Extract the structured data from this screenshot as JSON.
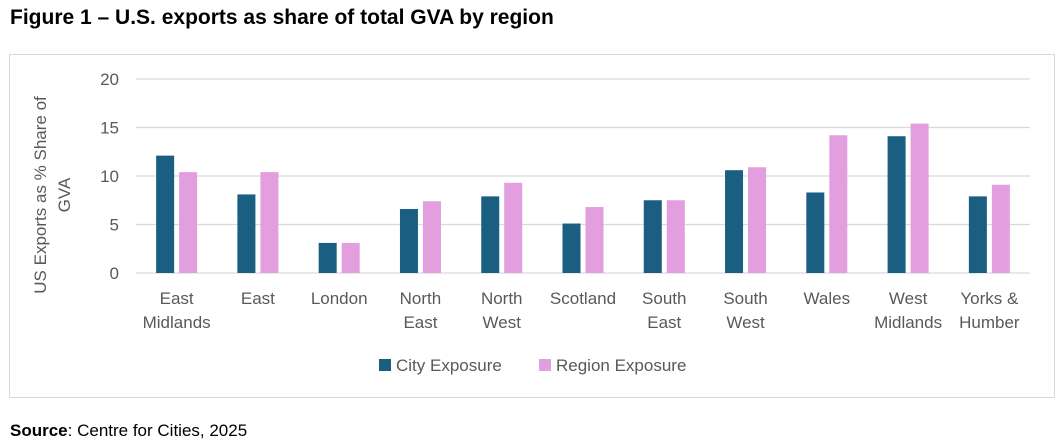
{
  "figure": {
    "title": "Figure 1 – U.S. exports as share of total GVA by region",
    "source_label": "Source",
    "source_text": ": Centre for Cities, 2025"
  },
  "chart_data": {
    "type": "bar",
    "title": "",
    "xlabel": "",
    "ylabel": "US Exports as % Share of GVA",
    "ylabel_lines": [
      "US Exports as % Share of",
      "GVA"
    ],
    "ylim": [
      0,
      20
    ],
    "yticks": [
      0,
      5,
      10,
      15,
      20
    ],
    "grid": true,
    "legend_position": "bottom",
    "categories": [
      [
        "East",
        "Midlands"
      ],
      [
        "East"
      ],
      [
        "London"
      ],
      [
        "North",
        "East"
      ],
      [
        "North",
        "West"
      ],
      [
        "Scotland"
      ],
      [
        "South",
        "East"
      ],
      [
        "South",
        "West"
      ],
      [
        "Wales"
      ],
      [
        "West",
        "Midlands"
      ],
      [
        "Yorks &",
        "Humber"
      ]
    ],
    "series": [
      {
        "name": "City Exposure",
        "color": "#1a5f82",
        "values": [
          12.1,
          8.1,
          3.1,
          6.6,
          7.9,
          5.1,
          7.5,
          10.6,
          8.3,
          14.1,
          7.9
        ]
      },
      {
        "name": "Region Exposure",
        "color": "#e29ede",
        "values": [
          10.4,
          10.4,
          3.1,
          7.4,
          9.3,
          6.8,
          7.5,
          10.9,
          14.2,
          15.4,
          9.1
        ]
      }
    ]
  }
}
